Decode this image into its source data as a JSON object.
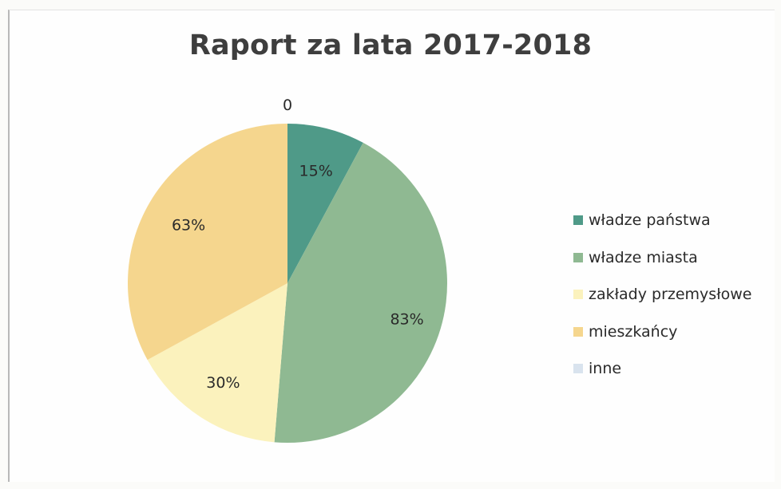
{
  "chart_data": {
    "type": "pie",
    "title": "Raport za lata 2017-2018",
    "categories": [
      "władze państwa",
      "władze miasta",
      "zakłady przemysłowe",
      "mieszkańcy",
      "inne"
    ],
    "values": [
      15,
      83,
      30,
      63,
      0
    ],
    "data_labels": [
      "15%",
      "83%",
      "30%",
      "63%",
      "0"
    ],
    "colors": [
      "#4f9a88",
      "#8fb992",
      "#fbf2bd",
      "#f5d68e",
      "#d9e3ee"
    ],
    "legend_position": "right",
    "start_angle_deg": 0,
    "direction": "clockwise"
  }
}
